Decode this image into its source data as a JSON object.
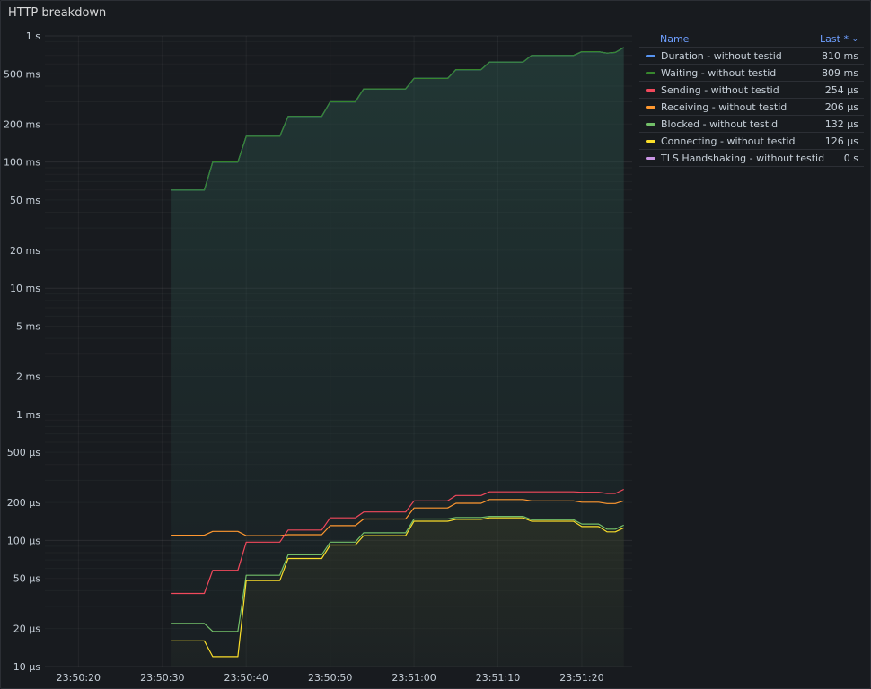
{
  "panel": {
    "title": "HTTP breakdown"
  },
  "legend": {
    "name_header": "Name",
    "last_header": "Last *",
    "sort_icon": "chevron-down-icon"
  },
  "chart_data": {
    "type": "line",
    "title": "HTTP breakdown",
    "y_scale": "log",
    "y_unit": "seconds",
    "ylim": [
      1e-05,
      1
    ],
    "y_ticks": [
      {
        "v": 1,
        "label": "1 s"
      },
      {
        "v": 0.5,
        "label": "500 ms"
      },
      {
        "v": 0.2,
        "label": "200 ms"
      },
      {
        "v": 0.1,
        "label": "100 ms"
      },
      {
        "v": 0.05,
        "label": "50 ms"
      },
      {
        "v": 0.02,
        "label": "20 ms"
      },
      {
        "v": 0.01,
        "label": "10 ms"
      },
      {
        "v": 0.005,
        "label": "5 ms"
      },
      {
        "v": 0.002,
        "label": "2 ms"
      },
      {
        "v": 0.001,
        "label": "1 ms"
      },
      {
        "v": 0.0005,
        "label": "500 µs"
      },
      {
        "v": 0.0002,
        "label": "200 µs"
      },
      {
        "v": 0.0001,
        "label": "100 µs"
      },
      {
        "v": 5e-05,
        "label": "50 µs"
      },
      {
        "v": 2e-05,
        "label": "20 µs"
      },
      {
        "v": 1e-05,
        "label": "10 µs"
      }
    ],
    "x_unit": "time",
    "xlim": [
      "23:50:16",
      "23:51:26"
    ],
    "x_ticks": [
      {
        "v": "23:50:20",
        "label": "23:50:20"
      },
      {
        "v": "23:50:30",
        "label": "23:50:30"
      },
      {
        "v": "23:50:40",
        "label": "23:50:40"
      },
      {
        "v": "23:50:50",
        "label": "23:50:50"
      },
      {
        "v": "23:51:00",
        "label": "23:51:00"
      },
      {
        "v": "23:51:10",
        "label": "23:51:10"
      },
      {
        "v": "23:51:20",
        "label": "23:51:20"
      }
    ],
    "grid": true,
    "legend_position": "right",
    "series": [
      {
        "name": "Duration - without testid",
        "color": "#5794f2",
        "last": "810 ms",
        "fill": false,
        "points": [
          [
            "23:50:31",
            0.06
          ],
          [
            "23:50:35",
            0.06
          ],
          [
            "23:50:36",
            0.1
          ],
          [
            "23:50:39",
            0.1
          ],
          [
            "23:50:40",
            0.16
          ],
          [
            "23:50:44",
            0.16
          ],
          [
            "23:50:45",
            0.23
          ],
          [
            "23:50:49",
            0.23
          ],
          [
            "23:50:50",
            0.3
          ],
          [
            "23:50:53",
            0.3
          ],
          [
            "23:50:54",
            0.38
          ],
          [
            "23:50:59",
            0.38
          ],
          [
            "23:51:00",
            0.46
          ],
          [
            "23:51:04",
            0.46
          ],
          [
            "23:51:05",
            0.54
          ],
          [
            "23:51:08",
            0.54
          ],
          [
            "23:51:09",
            0.62
          ],
          [
            "23:51:13",
            0.62
          ],
          [
            "23:51:14",
            0.7
          ],
          [
            "23:51:19",
            0.7
          ],
          [
            "23:51:20",
            0.75
          ],
          [
            "23:51:22",
            0.75
          ],
          [
            "23:51:23",
            0.73
          ],
          [
            "23:51:24",
            0.74
          ],
          [
            "23:51:25",
            0.81
          ]
        ]
      },
      {
        "name": "Waiting - without testid",
        "color": "#37872d",
        "last": "809 ms",
        "fill": true,
        "points": [
          [
            "23:50:31",
            0.06
          ],
          [
            "23:50:35",
            0.06
          ],
          [
            "23:50:36",
            0.1
          ],
          [
            "23:50:39",
            0.1
          ],
          [
            "23:50:40",
            0.16
          ],
          [
            "23:50:44",
            0.16
          ],
          [
            "23:50:45",
            0.23
          ],
          [
            "23:50:49",
            0.23
          ],
          [
            "23:50:50",
            0.3
          ],
          [
            "23:50:53",
            0.3
          ],
          [
            "23:50:54",
            0.38
          ],
          [
            "23:50:59",
            0.38
          ],
          [
            "23:51:00",
            0.46
          ],
          [
            "23:51:04",
            0.46
          ],
          [
            "23:51:05",
            0.54
          ],
          [
            "23:51:08",
            0.54
          ],
          [
            "23:51:09",
            0.62
          ],
          [
            "23:51:13",
            0.62
          ],
          [
            "23:51:14",
            0.7
          ],
          [
            "23:51:19",
            0.7
          ],
          [
            "23:51:20",
            0.75
          ],
          [
            "23:51:22",
            0.75
          ],
          [
            "23:51:23",
            0.73
          ],
          [
            "23:51:24",
            0.74
          ],
          [
            "23:51:25",
            0.809
          ]
        ]
      },
      {
        "name": "Sending - without testid",
        "color": "#f2495c",
        "last": "254 µs",
        "fill": false,
        "points": [
          [
            "23:50:31",
            3.8e-05
          ],
          [
            "23:50:35",
            3.8e-05
          ],
          [
            "23:50:36",
            5.8e-05
          ],
          [
            "23:50:39",
            5.8e-05
          ],
          [
            "23:50:40",
            9.7e-05
          ],
          [
            "23:50:44",
            9.7e-05
          ],
          [
            "23:50:45",
            0.000121
          ],
          [
            "23:50:49",
            0.000121
          ],
          [
            "23:50:50",
            0.000151
          ],
          [
            "23:50:53",
            0.000151
          ],
          [
            "23:50:54",
            0.000168
          ],
          [
            "23:50:59",
            0.000168
          ],
          [
            "23:51:00",
            0.000206
          ],
          [
            "23:51:04",
            0.000206
          ],
          [
            "23:51:05",
            0.000227
          ],
          [
            "23:51:08",
            0.000227
          ],
          [
            "23:51:09",
            0.000243
          ],
          [
            "23:51:13",
            0.000243
          ],
          [
            "23:51:14",
            0.000243
          ],
          [
            "23:51:19",
            0.000243
          ],
          [
            "23:51:20",
            0.000241
          ],
          [
            "23:51:22",
            0.000241
          ],
          [
            "23:51:23",
            0.000236
          ],
          [
            "23:51:24",
            0.000236
          ],
          [
            "23:51:25",
            0.000254
          ]
        ]
      },
      {
        "name": "Receiving - without testid",
        "color": "#ff9830",
        "last": "206 µs",
        "fill": false,
        "points": [
          [
            "23:50:31",
            0.00011
          ],
          [
            "23:50:35",
            0.00011
          ],
          [
            "23:50:36",
            0.000118
          ],
          [
            "23:50:39",
            0.000118
          ],
          [
            "23:50:40",
            0.000109
          ],
          [
            "23:50:44",
            0.000109
          ],
          [
            "23:50:45",
            0.000111
          ],
          [
            "23:50:49",
            0.000111
          ],
          [
            "23:50:50",
            0.000131
          ],
          [
            "23:50:53",
            0.000131
          ],
          [
            "23:50:54",
            0.000148
          ],
          [
            "23:50:59",
            0.000148
          ],
          [
            "23:51:00",
            0.000181
          ],
          [
            "23:51:04",
            0.000181
          ],
          [
            "23:51:05",
            0.000197
          ],
          [
            "23:51:08",
            0.000197
          ],
          [
            "23:51:09",
            0.000211
          ],
          [
            "23:51:13",
            0.000211
          ],
          [
            "23:51:14",
            0.000206
          ],
          [
            "23:51:19",
            0.000206
          ],
          [
            "23:51:20",
            0.000201
          ],
          [
            "23:51:22",
            0.000201
          ],
          [
            "23:51:23",
            0.000196
          ],
          [
            "23:51:24",
            0.000196
          ],
          [
            "23:51:25",
            0.000206
          ]
        ]
      },
      {
        "name": "Blocked - without testid",
        "color": "#73bf69",
        "last": "132 µs",
        "fill": false,
        "points": [
          [
            "23:50:31",
            2.2e-05
          ],
          [
            "23:50:35",
            2.2e-05
          ],
          [
            "23:50:36",
            1.9e-05
          ],
          [
            "23:50:39",
            1.9e-05
          ],
          [
            "23:50:40",
            5.3e-05
          ],
          [
            "23:50:44",
            5.3e-05
          ],
          [
            "23:50:45",
            7.7e-05
          ],
          [
            "23:50:49",
            7.7e-05
          ],
          [
            "23:50:50",
            9.7e-05
          ],
          [
            "23:50:53",
            9.7e-05
          ],
          [
            "23:50:54",
            0.000115
          ],
          [
            "23:50:59",
            0.000115
          ],
          [
            "23:51:00",
            0.000148
          ],
          [
            "23:51:04",
            0.000148
          ],
          [
            "23:51:05",
            0.000152
          ],
          [
            "23:51:08",
            0.000152
          ],
          [
            "23:51:09",
            0.000155
          ],
          [
            "23:51:13",
            0.000155
          ],
          [
            "23:51:14",
            0.000146
          ],
          [
            "23:51:19",
            0.000146
          ],
          [
            "23:51:20",
            0.000135
          ],
          [
            "23:51:22",
            0.000135
          ],
          [
            "23:51:23",
            0.000123
          ],
          [
            "23:51:24",
            0.000123
          ],
          [
            "23:51:25",
            0.000132
          ]
        ]
      },
      {
        "name": "Connecting - without testid",
        "color": "#fade2a",
        "last": "126 µs",
        "fill": true,
        "points": [
          [
            "23:50:31",
            1.6e-05
          ],
          [
            "23:50:35",
            1.6e-05
          ],
          [
            "23:50:36",
            1.2e-05
          ],
          [
            "23:50:39",
            1.2e-05
          ],
          [
            "23:50:40",
            4.8e-05
          ],
          [
            "23:50:44",
            4.8e-05
          ],
          [
            "23:50:45",
            7.2e-05
          ],
          [
            "23:50:49",
            7.2e-05
          ],
          [
            "23:50:50",
            9.2e-05
          ],
          [
            "23:50:53",
            9.2e-05
          ],
          [
            "23:50:54",
            0.000109
          ],
          [
            "23:50:59",
            0.000109
          ],
          [
            "23:51:00",
            0.000142
          ],
          [
            "23:51:04",
            0.000142
          ],
          [
            "23:51:05",
            0.000147
          ],
          [
            "23:51:08",
            0.000147
          ],
          [
            "23:51:09",
            0.000151
          ],
          [
            "23:51:13",
            0.000151
          ],
          [
            "23:51:14",
            0.000142
          ],
          [
            "23:51:19",
            0.000142
          ],
          [
            "23:51:20",
            0.000129
          ],
          [
            "23:51:22",
            0.000129
          ],
          [
            "23:51:23",
            0.000117
          ],
          [
            "23:51:24",
            0.000117
          ],
          [
            "23:51:25",
            0.000126
          ]
        ]
      },
      {
        "name": "TLS Handshaking - without testid",
        "color": "#ca95e5",
        "last": "0 s",
        "fill": false,
        "points": []
      }
    ]
  }
}
